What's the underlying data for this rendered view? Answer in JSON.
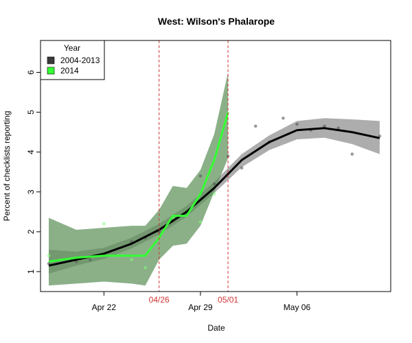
{
  "chart_data": {
    "type": "line",
    "title": "West: Wilson's Phalarope",
    "xlabel": "Date",
    "ylabel": "Percent of checklists reporting",
    "x_ticks": [
      {
        "day": 22,
        "label": "Apr 22"
      },
      {
        "day": 29,
        "label": "Apr 29"
      },
      {
        "day": 36,
        "label": "May 06"
      }
    ],
    "y_ticks": [
      1,
      2,
      3,
      4,
      5,
      6
    ],
    "xlim": [
      17.4,
      42.8
    ],
    "ylim": [
      0.5,
      6.8
    ],
    "reference_lines": [
      {
        "day": 26,
        "label": "04/26",
        "color": "#d33333"
      },
      {
        "day": 31,
        "label": "05/01",
        "color": "#d33333"
      }
    ],
    "legend": {
      "title": "Year",
      "position": "top-left",
      "entries": [
        {
          "label": "2004-2013",
          "color": "#3a3a3a"
        },
        {
          "label": "2014",
          "color": "#33ff33"
        }
      ]
    },
    "series": [
      {
        "name": "2004-2013",
        "color": "#000000",
        "band_color": "#777777",
        "x": [
          18,
          20,
          22,
          24,
          26,
          28,
          30,
          32,
          34,
          36,
          38,
          40,
          42
        ],
        "y": [
          1.15,
          1.3,
          1.45,
          1.7,
          2.05,
          2.5,
          3.1,
          3.8,
          4.25,
          4.55,
          4.6,
          4.5,
          4.35
        ],
        "lower": [
          0.95,
          1.15,
          1.32,
          1.58,
          1.93,
          2.38,
          2.97,
          3.62,
          4.05,
          4.32,
          4.36,
          4.2,
          3.95
        ],
        "upper": [
          1.55,
          1.5,
          1.6,
          1.85,
          2.2,
          2.65,
          3.25,
          3.95,
          4.42,
          4.78,
          4.85,
          4.82,
          4.78
        ]
      },
      {
        "name": "2014",
        "color": "#33ff33",
        "band_color": "#5a8f55",
        "x": [
          18,
          20,
          22,
          24,
          25,
          26,
          27,
          28,
          29,
          30,
          31
        ],
        "y": [
          1.25,
          1.35,
          1.4,
          1.4,
          1.4,
          1.85,
          2.4,
          2.4,
          2.95,
          3.8,
          5.0
        ],
        "lower": [
          0.65,
          0.7,
          0.75,
          0.7,
          0.65,
          1.3,
          1.65,
          1.7,
          2.15,
          3.0,
          3.85
        ],
        "upper": [
          2.35,
          2.05,
          2.1,
          2.15,
          2.15,
          2.55,
          3.15,
          3.1,
          3.55,
          4.45,
          6.0
        ]
      }
    ],
    "scatter": [
      {
        "series": "2004-2013",
        "color": "#555555",
        "x": [
          18,
          20,
          21,
          24,
          25,
          26,
          27,
          28,
          29,
          30,
          31,
          32,
          33,
          34,
          35,
          36,
          37,
          38,
          39,
          40,
          42
        ],
        "y": [
          1.2,
          1.25,
          1.3,
          1.75,
          1.85,
          2.0,
          2.3,
          2.45,
          3.4,
          3.2,
          3.9,
          3.6,
          4.65,
          4.25,
          4.85,
          4.7,
          4.55,
          4.65,
          4.6,
          3.95,
          4.4
        ]
      },
      {
        "series": "2014",
        "color": "#7dff7d",
        "x": [
          18,
          22,
          24,
          25,
          27,
          29,
          30
        ],
        "y": [
          1.4,
          2.2,
          1.3,
          1.1,
          2.35,
          2.25,
          2.95
        ]
      }
    ]
  }
}
